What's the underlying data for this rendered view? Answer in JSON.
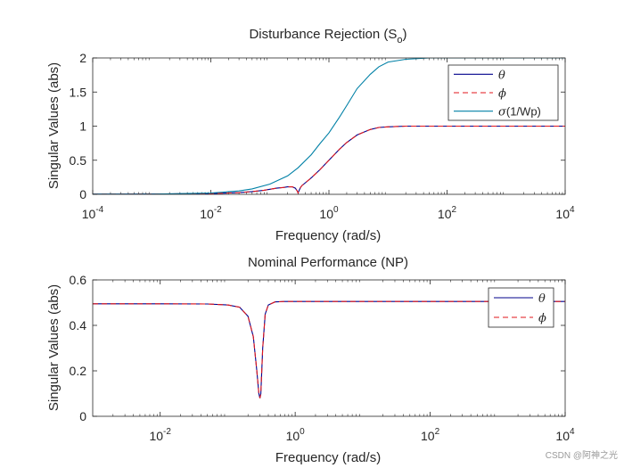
{
  "watermark": "CSDN @阿神之光",
  "chart_data": [
    {
      "type": "line",
      "title": "Disturbance Rejection (S",
      "title_sub": "o",
      "title_suffix": ")",
      "xlabel": "Frequency (rad/s)",
      "ylabel": "Singular Values (abs)",
      "xscale": "log",
      "xlim": [
        0.0001,
        10000
      ],
      "ylim": [
        0,
        2
      ],
      "xticks": [
        {
          "base": "10",
          "exp": "-4"
        },
        {
          "base": "10",
          "exp": "-2"
        },
        {
          "base": "10",
          "exp": "0"
        },
        {
          "base": "10",
          "exp": "2"
        },
        {
          "base": "10",
          "exp": "4"
        }
      ],
      "xtick_values": [
        0.0001,
        0.01,
        1,
        100,
        10000
      ],
      "yticks": [
        "0",
        "0.5",
        "1",
        "1.5",
        "2"
      ],
      "ytick_values": [
        0,
        0.5,
        1,
        1.5,
        2
      ],
      "legend_position": "top-right",
      "series": [
        {
          "name": "θ",
          "color": "#00008b",
          "dash": "solid",
          "x": [
            0.0001,
            0.001,
            0.01,
            0.03,
            0.05,
            0.08,
            0.1,
            0.13,
            0.17,
            0.2,
            0.24,
            0.27,
            0.29,
            0.3,
            0.31,
            0.33,
            0.35,
            0.4,
            0.5,
            0.7,
            1,
            1.5,
            2,
            3,
            5,
            7,
            10,
            20,
            100,
            1000,
            10000
          ],
          "y": [
            0.003,
            0.004,
            0.01,
            0.025,
            0.04,
            0.06,
            0.075,
            0.09,
            0.1,
            0.11,
            0.11,
            0.09,
            0.05,
            0.02,
            0.05,
            0.1,
            0.13,
            0.17,
            0.24,
            0.36,
            0.5,
            0.66,
            0.76,
            0.87,
            0.95,
            0.98,
            0.99,
            1.0,
            1.0,
            1.0,
            1.0
          ]
        },
        {
          "name": "ϕ",
          "color": "#e0161b",
          "dash": "dash",
          "x": [
            0.0001,
            0.001,
            0.01,
            0.03,
            0.05,
            0.08,
            0.1,
            0.13,
            0.17,
            0.2,
            0.24,
            0.27,
            0.29,
            0.3,
            0.31,
            0.33,
            0.35,
            0.4,
            0.5,
            0.7,
            1,
            1.5,
            2,
            3,
            5,
            7,
            10,
            20,
            100,
            1000,
            10000
          ],
          "y": [
            0.003,
            0.004,
            0.01,
            0.025,
            0.04,
            0.06,
            0.075,
            0.09,
            0.1,
            0.11,
            0.11,
            0.09,
            0.05,
            0.02,
            0.05,
            0.1,
            0.13,
            0.17,
            0.24,
            0.36,
            0.5,
            0.66,
            0.76,
            0.87,
            0.95,
            0.98,
            0.99,
            1.0,
            1.0,
            1.0,
            1.0
          ]
        },
        {
          "name": "σ(1/Wp)",
          "color": "#0080a6",
          "dash": "solid",
          "x": [
            0.0001,
            0.001,
            0.01,
            0.03,
            0.05,
            0.1,
            0.2,
            0.3,
            0.5,
            0.7,
            1,
            1.5,
            2,
            3,
            5,
            7,
            10,
            20,
            50,
            100,
            1000,
            10000
          ],
          "y": [
            0.002,
            0.003,
            0.02,
            0.05,
            0.08,
            0.15,
            0.27,
            0.39,
            0.58,
            0.74,
            0.9,
            1.13,
            1.3,
            1.55,
            1.76,
            1.87,
            1.94,
            1.98,
            2.0,
            2.0,
            2.0,
            2.0
          ]
        }
      ]
    },
    {
      "type": "line",
      "title": "Nominal Performance (NP)",
      "xlabel": "Frequency (rad/s)",
      "ylabel": "Singular Values (abs)",
      "xscale": "log",
      "xlim": [
        0.001,
        10000
      ],
      "ylim": [
        0,
        0.6
      ],
      "xticks": [
        {
          "base": "10",
          "exp": "-2"
        },
        {
          "base": "10",
          "exp": "0"
        },
        {
          "base": "10",
          "exp": "2"
        },
        {
          "base": "10",
          "exp": "4"
        }
      ],
      "xtick_values": [
        0.01,
        1,
        100,
        10000
      ],
      "yticks": [
        "0",
        "0.2",
        "0.4",
        "0.6"
      ],
      "ytick_values": [
        0,
        0.2,
        0.4,
        0.6
      ],
      "legend_position": "top-right",
      "series": [
        {
          "name": "θ",
          "color": "#00008b",
          "dash": "solid",
          "x": [
            0.001,
            0.01,
            0.05,
            0.1,
            0.15,
            0.2,
            0.24,
            0.27,
            0.29,
            0.3,
            0.31,
            0.33,
            0.36,
            0.4,
            0.5,
            0.7,
            1,
            10,
            100,
            1000,
            10000
          ],
          "y": [
            0.495,
            0.495,
            0.494,
            0.49,
            0.48,
            0.44,
            0.35,
            0.2,
            0.1,
            0.08,
            0.1,
            0.3,
            0.45,
            0.49,
            0.503,
            0.505,
            0.505,
            0.505,
            0.505,
            0.505,
            0.505
          ]
        },
        {
          "name": "ϕ",
          "color": "#e0161b",
          "dash": "dash",
          "x": [
            0.001,
            0.01,
            0.05,
            0.1,
            0.15,
            0.2,
            0.24,
            0.27,
            0.29,
            0.3,
            0.31,
            0.33,
            0.36,
            0.4,
            0.5,
            0.7,
            1,
            10,
            100,
            1000,
            10000
          ],
          "y": [
            0.495,
            0.495,
            0.494,
            0.49,
            0.48,
            0.44,
            0.35,
            0.2,
            0.1,
            0.08,
            0.1,
            0.3,
            0.45,
            0.49,
            0.503,
            0.505,
            0.505,
            0.505,
            0.505,
            0.505,
            0.505
          ]
        }
      ]
    }
  ]
}
